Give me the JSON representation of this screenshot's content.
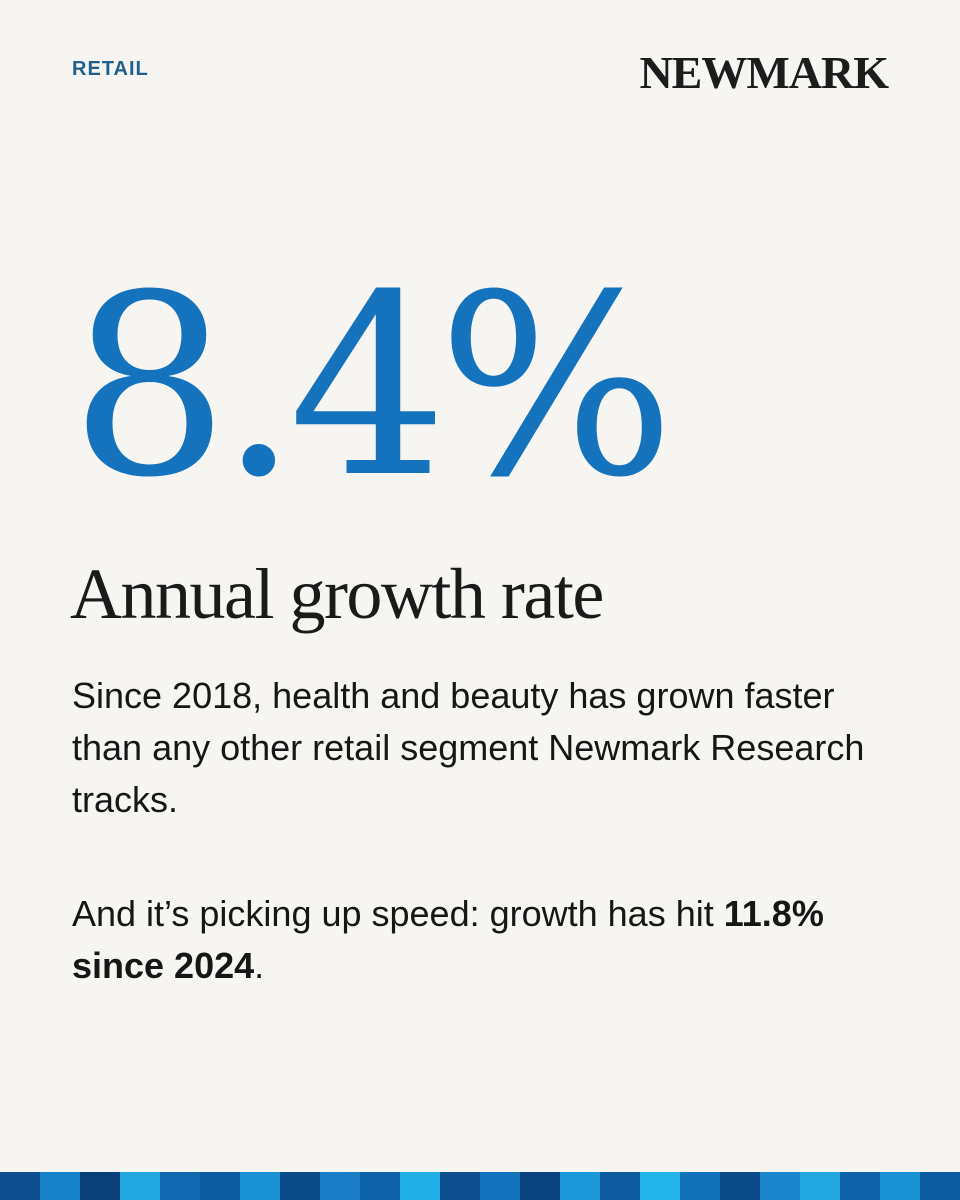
{
  "header": {
    "category": "RETAIL",
    "logo_text": "NEWMARK"
  },
  "stat": {
    "value": "8.4%",
    "label": "Annual growth rate"
  },
  "body": {
    "paragraph1": "Since 2018, health and beauty has grown faster than any other retail segment Newmark Research tracks.",
    "paragraph2_prefix": "And it’s picking up speed: growth has hit ",
    "paragraph2_bold": "11.8% since 2024",
    "paragraph2_suffix": "."
  },
  "colors": {
    "background": "#f6f5f2",
    "accent": "#1573bd",
    "category": "#1f5f8b",
    "stripe": [
      "#0d4f8f",
      "#1680c9",
      "#0a3f78",
      "#22a6e0",
      "#1068b0",
      "#0c5aa0",
      "#1990d2",
      "#0b4a88",
      "#1a7cc4",
      "#0f63a8",
      "#21b0e6",
      "#0d4f8f",
      "#1573bd",
      "#0a4480",
      "#1c98d8",
      "#0e5c9f",
      "#23b4ea",
      "#1070b8",
      "#0b4a88",
      "#1a86cc",
      "#22a6e0",
      "#0f63a8",
      "#1990d2",
      "#0c5aa0"
    ]
  }
}
